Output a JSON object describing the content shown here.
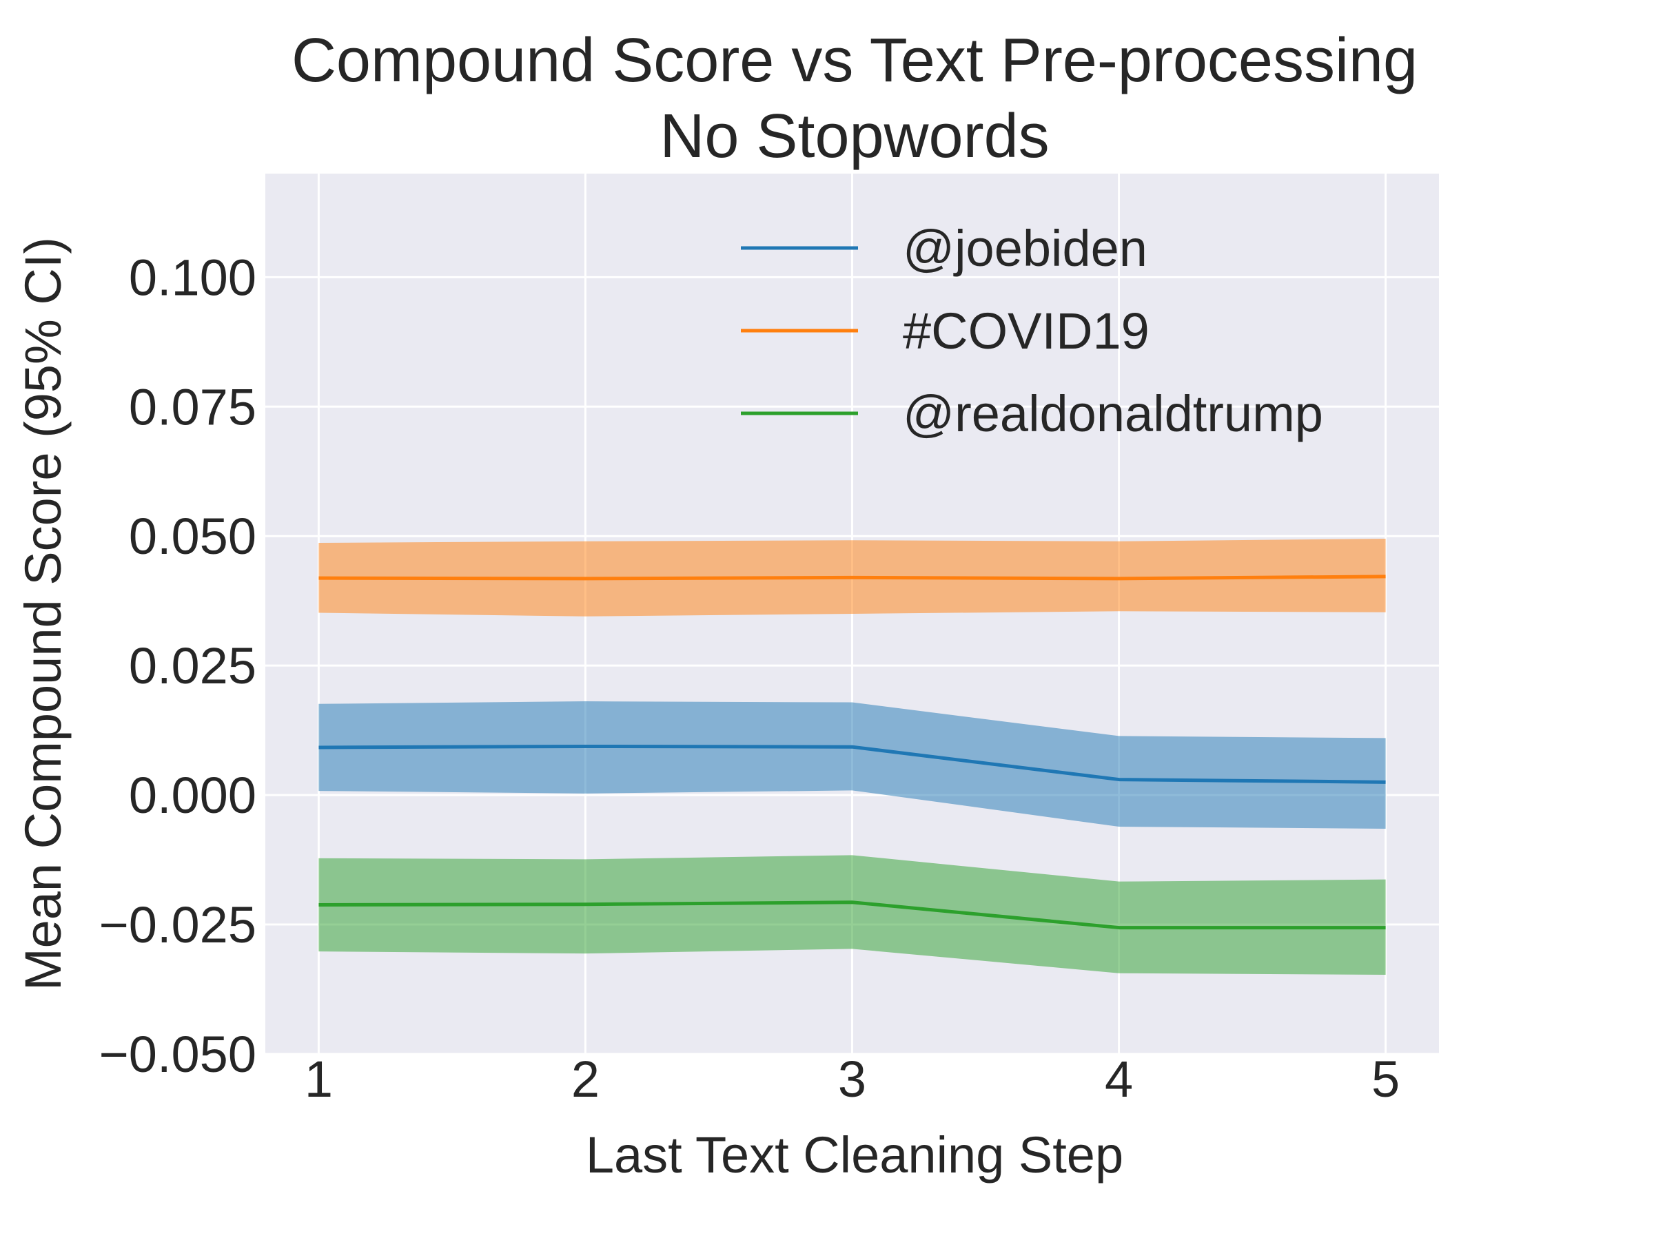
{
  "chart_data": {
    "type": "line",
    "title": [
      "Compound Score vs Text Pre-processing",
      "No Stopwords"
    ],
    "xlabel": "Last Text Cleaning Step",
    "ylabel": "Mean Compound Score (95% CI)",
    "x": [
      1,
      2,
      3,
      4,
      5
    ],
    "x_tick_labels": [
      "1",
      "2",
      "3",
      "4",
      "5"
    ],
    "xlim": [
      0.8,
      5.2
    ],
    "ylim": [
      -0.05,
      0.12
    ],
    "y_ticks": [
      -0.05,
      -0.025,
      0.0,
      0.025,
      0.05,
      0.075,
      0.1
    ],
    "y_tick_labels": [
      "−0.050",
      "−0.025",
      "0.000",
      "0.025",
      "0.050",
      "0.075",
      "0.100"
    ],
    "grid": true,
    "legend_position": "top-right",
    "background_color": "#eaeaf2",
    "series": [
      {
        "name": "@joebiden",
        "color": "#1f77b4",
        "values": [
          0.0092,
          0.0094,
          0.0093,
          0.003,
          0.0025
        ],
        "ci_lower": [
          0.0008,
          0.0003,
          0.0009,
          -0.0061,
          -0.0065
        ],
        "ci_upper": [
          0.0176,
          0.0181,
          0.0179,
          0.0114,
          0.011
        ]
      },
      {
        "name": "#COVID19",
        "color": "#ff7f0e",
        "values": [
          0.0419,
          0.0418,
          0.042,
          0.0418,
          0.0422
        ],
        "ci_lower": [
          0.0352,
          0.0345,
          0.035,
          0.0355,
          0.0353
        ],
        "ci_upper": [
          0.0487,
          0.049,
          0.0492,
          0.049,
          0.0495
        ]
      },
      {
        "name": "@realdonaldtrump",
        "color": "#2ca02c",
        "values": [
          -0.0212,
          -0.0211,
          -0.0207,
          -0.0256,
          -0.0256
        ],
        "ci_lower": [
          -0.0302,
          -0.0306,
          -0.0297,
          -0.0344,
          -0.0347
        ],
        "ci_upper": [
          -0.0122,
          -0.0124,
          -0.0116,
          -0.0167,
          -0.0163
        ]
      }
    ]
  }
}
